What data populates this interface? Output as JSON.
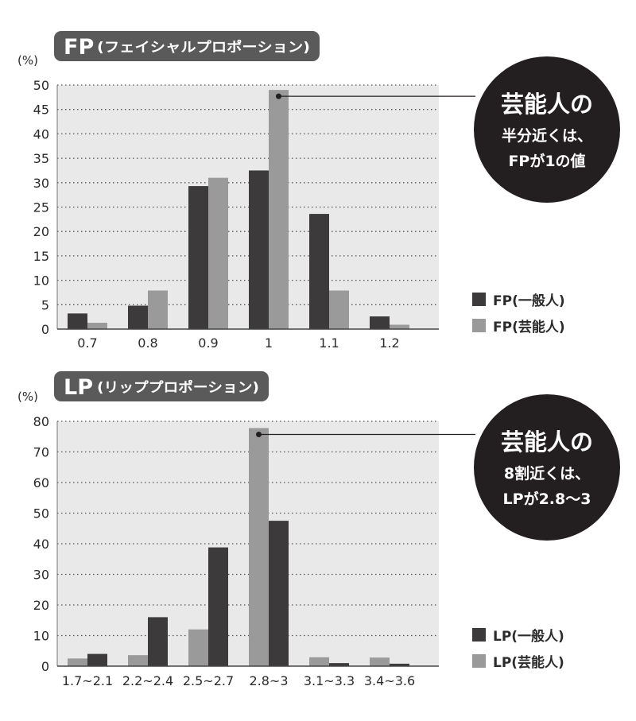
{
  "colors": {
    "general": "#3c3a3b",
    "celebrity": "#9a9a9a",
    "plot_bg": "#e9e9e9",
    "pill_bg": "#5a5a5a",
    "callout_bg": "#231f20",
    "text": "#2b2b2b"
  },
  "chart_data": [
    {
      "type": "bar",
      "title_main": "FP",
      "title_sub": "(フェイシャルプロポーション)",
      "ylabel": "(%)",
      "ylim": [
        0,
        50
      ],
      "yticks": [
        0,
        5,
        10,
        15,
        20,
        25,
        30,
        35,
        40,
        45,
        50
      ],
      "categories": [
        "0.7",
        "0.8",
        "0.9",
        "1",
        "1.1",
        "1.2"
      ],
      "series": [
        {
          "name": "FP(一般人)",
          "values": [
            3.2,
            4.8,
            29.3,
            32.5,
            23.6,
            2.6
          ]
        },
        {
          "name": "FP(芸能人)",
          "values": [
            1.3,
            7.9,
            31.0,
            49.0,
            7.9,
            0.9
          ]
        }
      ],
      "legend": [
        "FP(一般人)",
        "FP(芸能人)"
      ],
      "legend_position": "bottom-right",
      "grid": true,
      "callout": {
        "line1": "芸能人の",
        "line2": "半分近くは、",
        "line3": "FPが1の値",
        "target_category": 3,
        "target_series": 1
      }
    },
    {
      "type": "bar",
      "title_main": "LP",
      "title_sub": "(リッププロポーション)",
      "ylabel": "(%)",
      "ylim": [
        0,
        80
      ],
      "yticks": [
        0,
        10,
        20,
        30,
        40,
        50,
        60,
        70,
        80
      ],
      "categories": [
        "1.7~2.1",
        "2.2~2.4",
        "2.5~2.7",
        "2.8~3",
        "3.1~3.3",
        "3.4~3.6"
      ],
      "series": [
        {
          "name": "LP(芸能人)",
          "values": [
            2.5,
            3.6,
            12.0,
            77.8,
            2.9,
            2.8
          ]
        },
        {
          "name": "LP(一般人)",
          "values": [
            4.0,
            16.0,
            38.8,
            47.5,
            1.0,
            0.8
          ]
        }
      ],
      "legend": [
        "LP(一般人)",
        "LP(芸能人)"
      ],
      "legend_position": "bottom-right",
      "grid": true,
      "callout": {
        "line1": "芸能人の",
        "line2": "8割近くは、",
        "line3": "LPが2.8〜3",
        "target_category": 3,
        "target_series": 0
      }
    }
  ]
}
